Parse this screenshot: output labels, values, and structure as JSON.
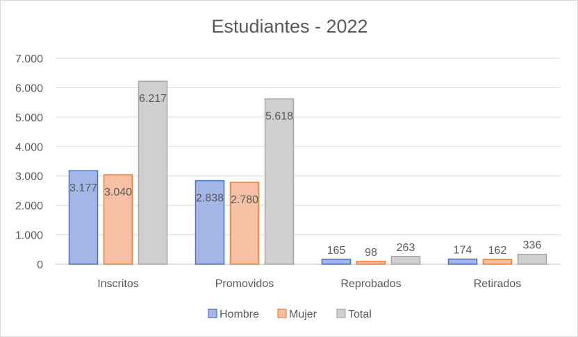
{
  "chart_data": {
    "type": "bar",
    "title": "Estudiantes - 2022",
    "xlabel": "",
    "ylabel": "",
    "categories": [
      "Inscritos",
      "Promovidos",
      "Reprobados",
      "Retirados"
    ],
    "series": [
      {
        "name": "Hombre",
        "values": [
          3177,
          2838,
          165,
          174
        ],
        "labels": [
          "3.177",
          "2.838",
          "165",
          "174"
        ],
        "fill": "#a4b6e6",
        "stroke": "#4472c4"
      },
      {
        "name": "Mujer",
        "values": [
          3040,
          2780,
          98,
          162
        ],
        "labels": [
          "3.040",
          "2.780",
          "98",
          "162"
        ],
        "fill": "#f7bfa3",
        "stroke": "#ed7d31"
      },
      {
        "name": "Total",
        "values": [
          6217,
          5618,
          263,
          336
        ],
        "labels": [
          "6.217",
          "5.618",
          "263",
          "336"
        ],
        "fill": "#cfcfcf",
        "stroke": "#a5a5a5"
      }
    ],
    "ylim": [
      0,
      7000
    ],
    "yticks": [
      0,
      1000,
      2000,
      3000,
      4000,
      5000,
      6000,
      7000
    ],
    "ytick_labels": [
      "0",
      "1.000",
      "2.000",
      "3.000",
      "4.000",
      "5.000",
      "6.000",
      "7.000"
    ],
    "grid": true,
    "legend_position": "bottom",
    "colors": {
      "grid": "#d9d9d9",
      "text": "#595959",
      "axis": "#bfbfbf"
    }
  }
}
